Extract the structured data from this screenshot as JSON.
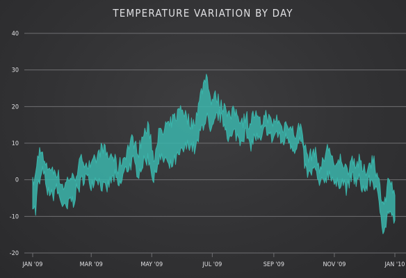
{
  "chart_data": {
    "type": "area",
    "title": "TEMPERATURE VARIATION BY DAY",
    "xlabel": "",
    "ylabel": "",
    "ylim": [
      -20,
      40
    ],
    "yticks": [
      "40",
      "30",
      "20",
      "10",
      "0",
      "-10",
      "-20"
    ],
    "xlim": [
      "2009-01-01",
      "2010-01-01"
    ],
    "xticks": [
      "JAN '09",
      "MAR '09",
      "MAY '09",
      "JUL '09",
      "SEP '09",
      "NOV '09",
      "JAN '10"
    ],
    "grid": true,
    "legend": "none",
    "series_color": "#3bb5ab",
    "series": [
      {
        "x": [
          "2009-01-01",
          "2009-01-04",
          "2009-01-06",
          "2009-01-09",
          "2009-01-12",
          "2009-01-15",
          "2009-01-18",
          "2009-01-21",
          "2009-01-24",
          "2009-01-27",
          "2009-01-30",
          "2009-02-02",
          "2009-02-05",
          "2009-02-08",
          "2009-02-11",
          "2009-02-14",
          "2009-02-17",
          "2009-02-20",
          "2009-02-23",
          "2009-02-26",
          "2009-03-01",
          "2009-03-04",
          "2009-03-07",
          "2009-03-10",
          "2009-03-13",
          "2009-03-16",
          "2009-03-19",
          "2009-03-22",
          "2009-03-25",
          "2009-03-28",
          "2009-03-31",
          "2009-04-03",
          "2009-04-06",
          "2009-04-09",
          "2009-04-12",
          "2009-04-15",
          "2009-04-18",
          "2009-04-21",
          "2009-04-24",
          "2009-04-27",
          "2009-04-30",
          "2009-05-03",
          "2009-05-06",
          "2009-05-09",
          "2009-05-12",
          "2009-05-15",
          "2009-05-18",
          "2009-05-21",
          "2009-05-24",
          "2009-05-27",
          "2009-05-30",
          "2009-06-02",
          "2009-06-05",
          "2009-06-08",
          "2009-06-11",
          "2009-06-14",
          "2009-06-17",
          "2009-06-20",
          "2009-06-23",
          "2009-06-26",
          "2009-06-29",
          "2009-07-02",
          "2009-07-05",
          "2009-07-08",
          "2009-07-11",
          "2009-07-14",
          "2009-07-17",
          "2009-07-20",
          "2009-07-23",
          "2009-07-26",
          "2009-07-29",
          "2009-08-01",
          "2009-08-04",
          "2009-08-07",
          "2009-08-10",
          "2009-08-13",
          "2009-08-16",
          "2009-08-19",
          "2009-08-22",
          "2009-08-25",
          "2009-08-28",
          "2009-08-31",
          "2009-09-03",
          "2009-09-06",
          "2009-09-09",
          "2009-09-12",
          "2009-09-15",
          "2009-09-18",
          "2009-09-21",
          "2009-09-24",
          "2009-09-27",
          "2009-09-30",
          "2009-10-03",
          "2009-10-06",
          "2009-10-09",
          "2009-10-12",
          "2009-10-15",
          "2009-10-18",
          "2009-10-21",
          "2009-10-24",
          "2009-10-27",
          "2009-10-30",
          "2009-11-02",
          "2009-11-05",
          "2009-11-08",
          "2009-11-11",
          "2009-11-14",
          "2009-11-17",
          "2009-11-20",
          "2009-11-23",
          "2009-11-26",
          "2009-11-29",
          "2009-12-02",
          "2009-12-05",
          "2009-12-08",
          "2009-12-11",
          "2009-12-14",
          "2009-12-17",
          "2009-12-20",
          "2009-12-23",
          "2009-12-26",
          "2009-12-29",
          "2010-01-01"
        ],
        "min": [
          -6,
          -9,
          -2,
          0,
          3,
          -4,
          -3,
          -5,
          -2,
          -4,
          -6,
          -8,
          -8,
          -5,
          -6,
          -3,
          -2,
          0,
          1,
          0,
          -1,
          0,
          1,
          -1,
          -2,
          -3,
          -1,
          0,
          1,
          -2,
          -1,
          2,
          3,
          4,
          5,
          3,
          2,
          4,
          5,
          6,
          4,
          -1,
          4,
          6,
          5,
          6,
          3,
          4,
          5,
          6,
          7,
          8,
          9,
          10,
          9,
          8,
          11,
          14,
          16,
          17,
          12,
          14,
          17,
          18,
          16,
          15,
          12,
          11,
          13,
          12,
          11,
          12,
          13,
          9,
          10,
          12,
          11,
          10,
          13,
          14,
          12,
          11,
          13,
          12,
          10,
          11,
          12,
          10,
          9,
          8,
          11,
          8,
          3,
          1,
          2,
          3,
          0,
          -2,
          0,
          1,
          2,
          1,
          -2,
          -1,
          0,
          -1,
          -3,
          0,
          1,
          -1,
          0,
          -2,
          -3,
          -1,
          0,
          -1,
          -4,
          -8,
          -13,
          -12,
          -8,
          -10,
          -12
        ],
        "max": [
          -1,
          1,
          6,
          9,
          5,
          3,
          4,
          2,
          3,
          1,
          -1,
          -2,
          0,
          1,
          0,
          2,
          4,
          6,
          5,
          4,
          3,
          5,
          6,
          8,
          9,
          7,
          6,
          7,
          5,
          3,
          5,
          6,
          8,
          10,
          11,
          9,
          8,
          11,
          13,
          14,
          12,
          5,
          11,
          13,
          12,
          15,
          14,
          16,
          17,
          18,
          20,
          19,
          17,
          16,
          15,
          17,
          20,
          24,
          27,
          29,
          22,
          22,
          23,
          21,
          20,
          21,
          18,
          17,
          19,
          18,
          17,
          16,
          18,
          15,
          17,
          18,
          16,
          15,
          17,
          18,
          16,
          15,
          17,
          16,
          14,
          15,
          16,
          14,
          13,
          12,
          15,
          13,
          8,
          6,
          7,
          8,
          5,
          3,
          5,
          8,
          9,
          6,
          2,
          5,
          6,
          4,
          2,
          5,
          6,
          4,
          5,
          3,
          2,
          4,
          5,
          6,
          1,
          -2,
          -6,
          -5,
          1,
          -2,
          -6
        ]
      }
    ]
  }
}
